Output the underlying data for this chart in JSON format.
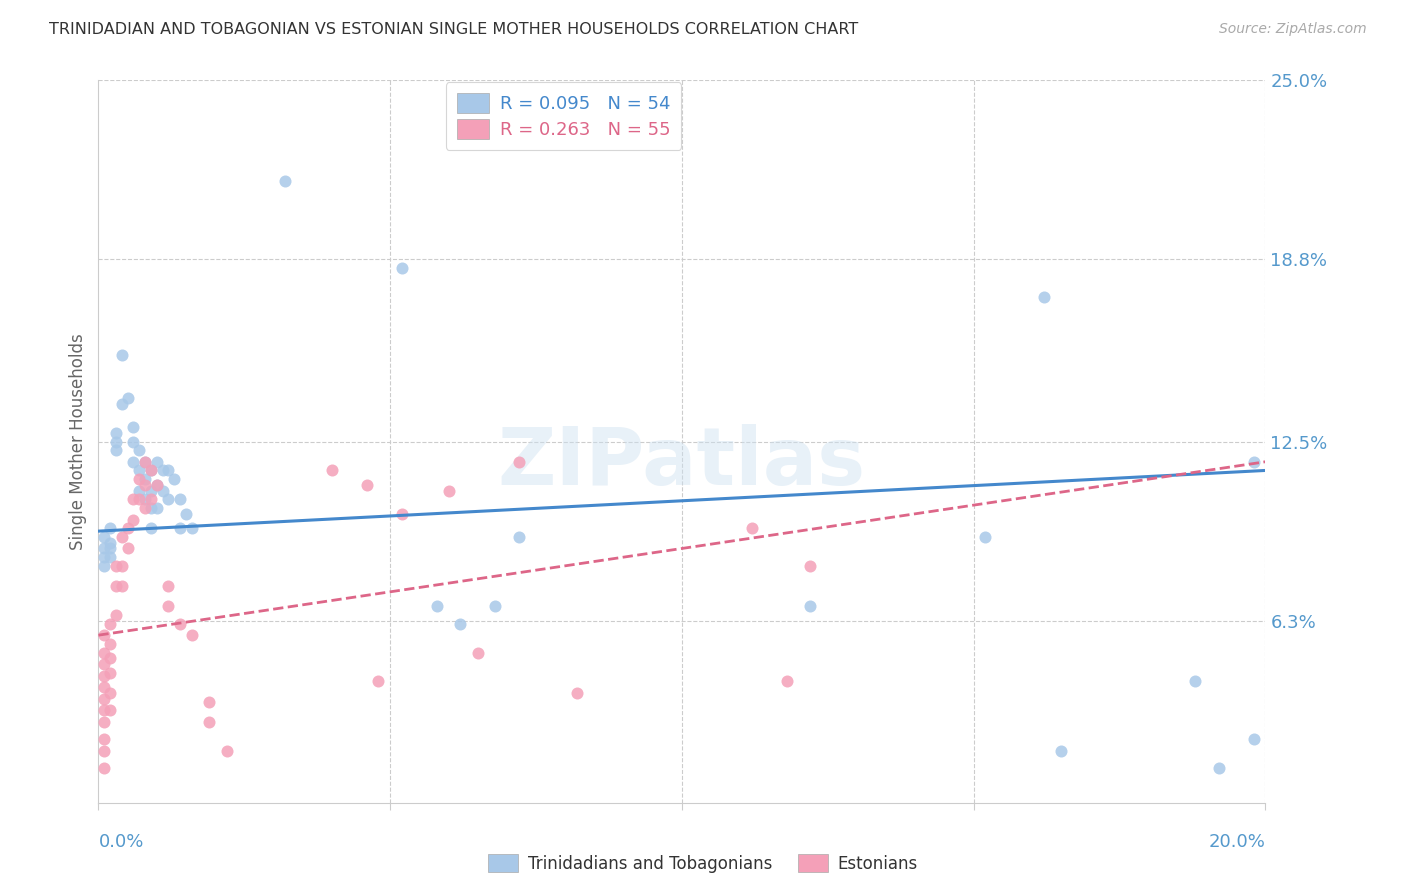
{
  "title": "TRINIDADIAN AND TOBAGONIAN VS ESTONIAN SINGLE MOTHER HOUSEHOLDS CORRELATION CHART",
  "source": "Source: ZipAtlas.com",
  "ylabel": "Single Mother Households",
  "y_ticks": [
    0.0,
    0.063,
    0.125,
    0.188,
    0.25
  ],
  "y_tick_labels": [
    "",
    "6.3%",
    "12.5%",
    "18.8%",
    "25.0%"
  ],
  "x_lim": [
    0.0,
    0.2
  ],
  "y_lim": [
    0.0,
    0.25
  ],
  "watermark": "ZIPatlas",
  "blue_color": "#a8c8e8",
  "pink_color": "#f4a0b8",
  "blue_line_color": "#4488cc",
  "pink_line_color": "#dd6688",
  "axis_color": "#5599cc",
  "blue_scatter": [
    [
      0.001,
      0.092
    ],
    [
      0.001,
      0.088
    ],
    [
      0.001,
      0.085
    ],
    [
      0.001,
      0.082
    ],
    [
      0.002,
      0.095
    ],
    [
      0.002,
      0.09
    ],
    [
      0.002,
      0.088
    ],
    [
      0.002,
      0.085
    ],
    [
      0.003,
      0.128
    ],
    [
      0.003,
      0.125
    ],
    [
      0.003,
      0.122
    ],
    [
      0.004,
      0.155
    ],
    [
      0.004,
      0.138
    ],
    [
      0.005,
      0.14
    ],
    [
      0.006,
      0.13
    ],
    [
      0.006,
      0.125
    ],
    [
      0.006,
      0.118
    ],
    [
      0.007,
      0.122
    ],
    [
      0.007,
      0.115
    ],
    [
      0.007,
      0.108
    ],
    [
      0.008,
      0.118
    ],
    [
      0.008,
      0.112
    ],
    [
      0.008,
      0.105
    ],
    [
      0.009,
      0.115
    ],
    [
      0.009,
      0.108
    ],
    [
      0.009,
      0.102
    ],
    [
      0.009,
      0.095
    ],
    [
      0.01,
      0.118
    ],
    [
      0.01,
      0.11
    ],
    [
      0.01,
      0.102
    ],
    [
      0.011,
      0.115
    ],
    [
      0.011,
      0.108
    ],
    [
      0.012,
      0.115
    ],
    [
      0.012,
      0.105
    ],
    [
      0.013,
      0.112
    ],
    [
      0.014,
      0.105
    ],
    [
      0.014,
      0.095
    ],
    [
      0.015,
      0.1
    ],
    [
      0.016,
      0.095
    ],
    [
      0.032,
      0.215
    ],
    [
      0.052,
      0.185
    ],
    [
      0.058,
      0.068
    ],
    [
      0.062,
      0.062
    ],
    [
      0.068,
      0.068
    ],
    [
      0.072,
      0.092
    ],
    [
      0.122,
      0.068
    ],
    [
      0.152,
      0.092
    ],
    [
      0.162,
      0.175
    ],
    [
      0.165,
      0.018
    ],
    [
      0.188,
      0.042
    ],
    [
      0.192,
      0.012
    ],
    [
      0.198,
      0.022
    ],
    [
      0.198,
      0.118
    ]
  ],
  "pink_scatter": [
    [
      0.001,
      0.058
    ],
    [
      0.001,
      0.052
    ],
    [
      0.001,
      0.048
    ],
    [
      0.001,
      0.044
    ],
    [
      0.001,
      0.04
    ],
    [
      0.001,
      0.036
    ],
    [
      0.001,
      0.032
    ],
    [
      0.001,
      0.028
    ],
    [
      0.001,
      0.022
    ],
    [
      0.001,
      0.018
    ],
    [
      0.001,
      0.012
    ],
    [
      0.002,
      0.062
    ],
    [
      0.002,
      0.055
    ],
    [
      0.002,
      0.05
    ],
    [
      0.002,
      0.045
    ],
    [
      0.002,
      0.038
    ],
    [
      0.002,
      0.032
    ],
    [
      0.003,
      0.082
    ],
    [
      0.003,
      0.075
    ],
    [
      0.003,
      0.065
    ],
    [
      0.004,
      0.092
    ],
    [
      0.004,
      0.082
    ],
    [
      0.004,
      0.075
    ],
    [
      0.005,
      0.095
    ],
    [
      0.005,
      0.088
    ],
    [
      0.006,
      0.105
    ],
    [
      0.006,
      0.098
    ],
    [
      0.007,
      0.112
    ],
    [
      0.007,
      0.105
    ],
    [
      0.008,
      0.118
    ],
    [
      0.008,
      0.11
    ],
    [
      0.008,
      0.102
    ],
    [
      0.009,
      0.115
    ],
    [
      0.009,
      0.105
    ],
    [
      0.01,
      0.11
    ],
    [
      0.012,
      0.075
    ],
    [
      0.012,
      0.068
    ],
    [
      0.014,
      0.062
    ],
    [
      0.016,
      0.058
    ],
    [
      0.019,
      0.035
    ],
    [
      0.019,
      0.028
    ],
    [
      0.022,
      0.018
    ],
    [
      0.04,
      0.115
    ],
    [
      0.046,
      0.11
    ],
    [
      0.048,
      0.042
    ],
    [
      0.052,
      0.1
    ],
    [
      0.06,
      0.108
    ],
    [
      0.065,
      0.052
    ],
    [
      0.072,
      0.118
    ],
    [
      0.082,
      0.038
    ],
    [
      0.112,
      0.095
    ],
    [
      0.118,
      0.042
    ],
    [
      0.122,
      0.082
    ]
  ]
}
